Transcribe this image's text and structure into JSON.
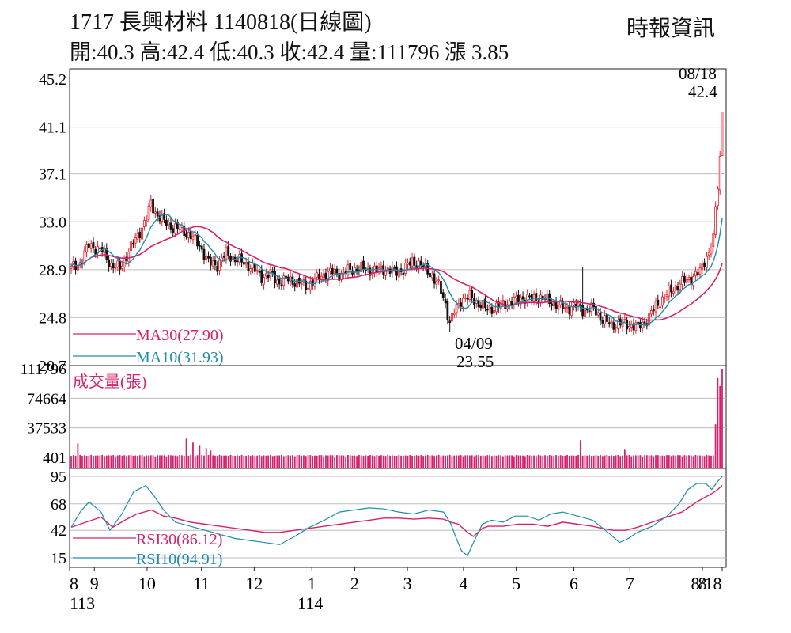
{
  "header": {
    "title": "1717  長興材料 1140818(日線圖)",
    "source": "時報資訊",
    "stats": "開:40.3 高:42.4 低:40.3 收:42.4 量:111796 漲 3.85"
  },
  "colors": {
    "up": "#e8202a",
    "down": "#111111",
    "ma30": "#d8206a",
    "ma10": "#1e8cab",
    "volume": "#d8206a",
    "rsi30": "#d8206a",
    "rsi10": "#1e8cab",
    "grid": "#bdbdbd"
  },
  "chart_data": [
    {
      "type": "candlestick",
      "ylim": [
        20.7,
        45.2
      ],
      "yticks": [
        "45.2",
        "41.1",
        "37.1",
        "33.0",
        "28.9",
        "24.8",
        "20.7"
      ],
      "legend": [
        {
          "key": "ma30",
          "label": "MA30(27.90)"
        },
        {
          "key": "ma10",
          "label": "MA10(31.93)"
        }
      ],
      "annotations": [
        {
          "date": "04/09",
          "value": "23.55",
          "date_label": "04/09",
          "value_label": "23.55"
        },
        {
          "date": "08/18",
          "value": "42.4",
          "date_label": "08/18",
          "value_label": "42.4"
        }
      ],
      "close_keypoints": [
        [
          0,
          29.0
        ],
        [
          4,
          29.5
        ],
        [
          8,
          31.0
        ],
        [
          14,
          30.5
        ],
        [
          18,
          29.3
        ],
        [
          22,
          29.0
        ],
        [
          26,
          30.5
        ],
        [
          30,
          31.8
        ],
        [
          34,
          33.3
        ],
        [
          36,
          34.6
        ],
        [
          38,
          33.8
        ],
        [
          42,
          33.0
        ],
        [
          46,
          32.5
        ],
        [
          50,
          32.3
        ],
        [
          54,
          31.8
        ],
        [
          58,
          31.0
        ],
        [
          62,
          29.5
        ],
        [
          66,
          29.3
        ],
        [
          70,
          30.3
        ],
        [
          74,
          29.8
        ],
        [
          78,
          29.5
        ],
        [
          82,
          29.0
        ],
        [
          86,
          28.3
        ],
        [
          90,
          28.5
        ],
        [
          94,
          27.8
        ],
        [
          98,
          28.1
        ],
        [
          102,
          27.8
        ],
        [
          106,
          27.5
        ],
        [
          110,
          28.0
        ],
        [
          114,
          28.5
        ],
        [
          118,
          28.7
        ],
        [
          122,
          28.5
        ],
        [
          126,
          28.9
        ],
        [
          130,
          29.0
        ],
        [
          134,
          28.9
        ],
        [
          138,
          28.8
        ],
        [
          142,
          29.0
        ],
        [
          146,
          28.7
        ],
        [
          150,
          28.9
        ],
        [
          154,
          29.6
        ],
        [
          158,
          29.3
        ],
        [
          162,
          28.6
        ],
        [
          166,
          27.5
        ],
        [
          169,
          26.0
        ],
        [
          171,
          24.3
        ],
        [
          173,
          25.3
        ],
        [
          176,
          26.3
        ],
        [
          180,
          26.6
        ],
        [
          184,
          26.0
        ],
        [
          188,
          25.5
        ],
        [
          192,
          25.7
        ],
        [
          196,
          26.0
        ],
        [
          200,
          26.2
        ],
        [
          204,
          26.5
        ],
        [
          208,
          26.4
        ],
        [
          212,
          26.5
        ],
        [
          216,
          26.2
        ],
        [
          220,
          25.8
        ],
        [
          224,
          25.6
        ],
        [
          228,
          25.8
        ],
        [
          232,
          25.4
        ],
        [
          236,
          25.6
        ],
        [
          240,
          24.6
        ],
        [
          244,
          24.2
        ],
        [
          248,
          24.3
        ],
        [
          252,
          24.2
        ],
        [
          256,
          24.0
        ],
        [
          260,
          24.6
        ],
        [
          264,
          25.8
        ],
        [
          268,
          26.6
        ],
        [
          272,
          27.3
        ],
        [
          276,
          27.8
        ],
        [
          280,
          28.2
        ],
        [
          284,
          28.7
        ],
        [
          286,
          29.7
        ],
        [
          287,
          30.0
        ],
        [
          288,
          30.4
        ],
        [
          289,
          31.0
        ],
        [
          290,
          32.0
        ],
        [
          291,
          34.3
        ],
        [
          292,
          35.8
        ],
        [
          293,
          38.6
        ],
        [
          294,
          42.4
        ]
      ]
    },
    {
      "type": "bar",
      "title": "成交量(張)",
      "yticks": [
        "111796",
        "74664",
        "37533",
        "401"
      ],
      "ylim": [
        401,
        111796
      ],
      "spikes": [
        [
          3,
          18000
        ],
        [
          52,
          24000
        ],
        [
          55,
          19000
        ],
        [
          58,
          15000
        ],
        [
          61,
          12000
        ],
        [
          63,
          9000
        ],
        [
          230,
          22000
        ],
        [
          250,
          10000
        ],
        [
          291,
          42000
        ],
        [
          292,
          100000
        ],
        [
          293,
          90000
        ],
        [
          294,
          111796
        ]
      ]
    },
    {
      "type": "line",
      "yticks": [
        "95",
        "68",
        "42",
        "15"
      ],
      "ylim": [
        15,
        95
      ],
      "legend": [
        {
          "key": "rsi30",
          "label": "RSI30(86.12)"
        },
        {
          "key": "rsi10",
          "label": "RSI10(94.91)"
        }
      ],
      "series": [
        {
          "key": "rsi30",
          "points": [
            [
              0,
              45
            ],
            [
              10,
              50
            ],
            [
              20,
              55
            ],
            [
              28,
              45
            ],
            [
              36,
              52
            ],
            [
              44,
              58
            ],
            [
              54,
              62
            ],
            [
              62,
              56
            ],
            [
              70,
              54
            ],
            [
              80,
              50
            ],
            [
              90,
              48
            ],
            [
              100,
              46
            ],
            [
              110,
              44
            ],
            [
              120,
              42
            ],
            [
              130,
              40
            ],
            [
              140,
              40
            ],
            [
              150,
              42
            ],
            [
              160,
              44
            ],
            [
              170,
              46
            ],
            [
              180,
              48
            ],
            [
              190,
              50
            ],
            [
              200,
              52
            ],
            [
              210,
              54
            ],
            [
              220,
              54
            ],
            [
              230,
              53
            ],
            [
              240,
              54
            ],
            [
              250,
              53
            ],
            [
              255,
              50
            ],
            [
              260,
              48
            ],
            [
              266,
              40
            ],
            [
              270,
              36
            ],
            [
              276,
              44
            ],
            [
              280,
              46
            ],
            [
              290,
              46
            ],
            [
              300,
              48
            ],
            [
              310,
              48
            ],
            [
              320,
              46
            ],
            [
              330,
              50
            ],
            [
              340,
              48
            ],
            [
              350,
              46
            ],
            [
              356,
              44
            ],
            [
              364,
              42
            ],
            [
              372,
              42
            ],
            [
              380,
              45
            ],
            [
              390,
              50
            ],
            [
              400,
              55
            ],
            [
              410,
              60
            ],
            [
              420,
              70
            ],
            [
              430,
              78
            ],
            [
              434,
              82
            ],
            [
              437,
              86.12
            ]
          ]
        },
        {
          "key": "rsi10",
          "points": [
            [
              0,
              45
            ],
            [
              6,
              60
            ],
            [
              12,
              70
            ],
            [
              20,
              60
            ],
            [
              26,
              42
            ],
            [
              34,
              58
            ],
            [
              42,
              80
            ],
            [
              50,
              86
            ],
            [
              56,
              75
            ],
            [
              62,
              62
            ],
            [
              70,
              50
            ],
            [
              80,
              46
            ],
            [
              90,
              42
            ],
            [
              100,
              38
            ],
            [
              110,
              34
            ],
            [
              120,
              32
            ],
            [
              130,
              30
            ],
            [
              140,
              28
            ],
            [
              150,
              36
            ],
            [
              160,
              45
            ],
            [
              170,
              52
            ],
            [
              180,
              60
            ],
            [
              190,
              62
            ],
            [
              200,
              64
            ],
            [
              210,
              63
            ],
            [
              220,
              60
            ],
            [
              230,
              58
            ],
            [
              240,
              62
            ],
            [
              250,
              60
            ],
            [
              255,
              48
            ],
            [
              258,
              36
            ],
            [
              262,
              22
            ],
            [
              266,
              17
            ],
            [
              270,
              30
            ],
            [
              276,
              48
            ],
            [
              282,
              52
            ],
            [
              290,
              50
            ],
            [
              298,
              56
            ],
            [
              306,
              56
            ],
            [
              314,
              52
            ],
            [
              322,
              58
            ],
            [
              330,
              60
            ],
            [
              340,
              56
            ],
            [
              350,
              52
            ],
            [
              356,
              45
            ],
            [
              362,
              38
            ],
            [
              368,
              30
            ],
            [
              374,
              34
            ],
            [
              380,
              40
            ],
            [
              390,
              46
            ],
            [
              400,
              56
            ],
            [
              408,
              68
            ],
            [
              414,
              82
            ],
            [
              420,
              88
            ],
            [
              426,
              88
            ],
            [
              430,
              82
            ],
            [
              434,
              90
            ],
            [
              437,
              94.91
            ]
          ]
        }
      ]
    }
  ],
  "x_axis": {
    "months": [
      {
        "label": "8",
        "t": 0
      },
      {
        "label": "9",
        "t": 15
      },
      {
        "label": "10",
        "t": 47
      },
      {
        "label": "11",
        "t": 80
      },
      {
        "label": "12",
        "t": 112
      },
      {
        "label": "1",
        "t": 147
      },
      {
        "label": "2",
        "t": 173
      },
      {
        "label": "3",
        "t": 205
      },
      {
        "label": "4",
        "t": 239
      },
      {
        "label": "5",
        "t": 271
      },
      {
        "label": "6",
        "t": 306
      },
      {
        "label": "7",
        "t": 340
      },
      {
        "label": "8",
        "t": 384
      },
      {
        "label": "8/18",
        "t": 396
      }
    ],
    "years": [
      {
        "label": "113",
        "t": 0
      },
      {
        "label": "114",
        "t": 147
      }
    ]
  }
}
